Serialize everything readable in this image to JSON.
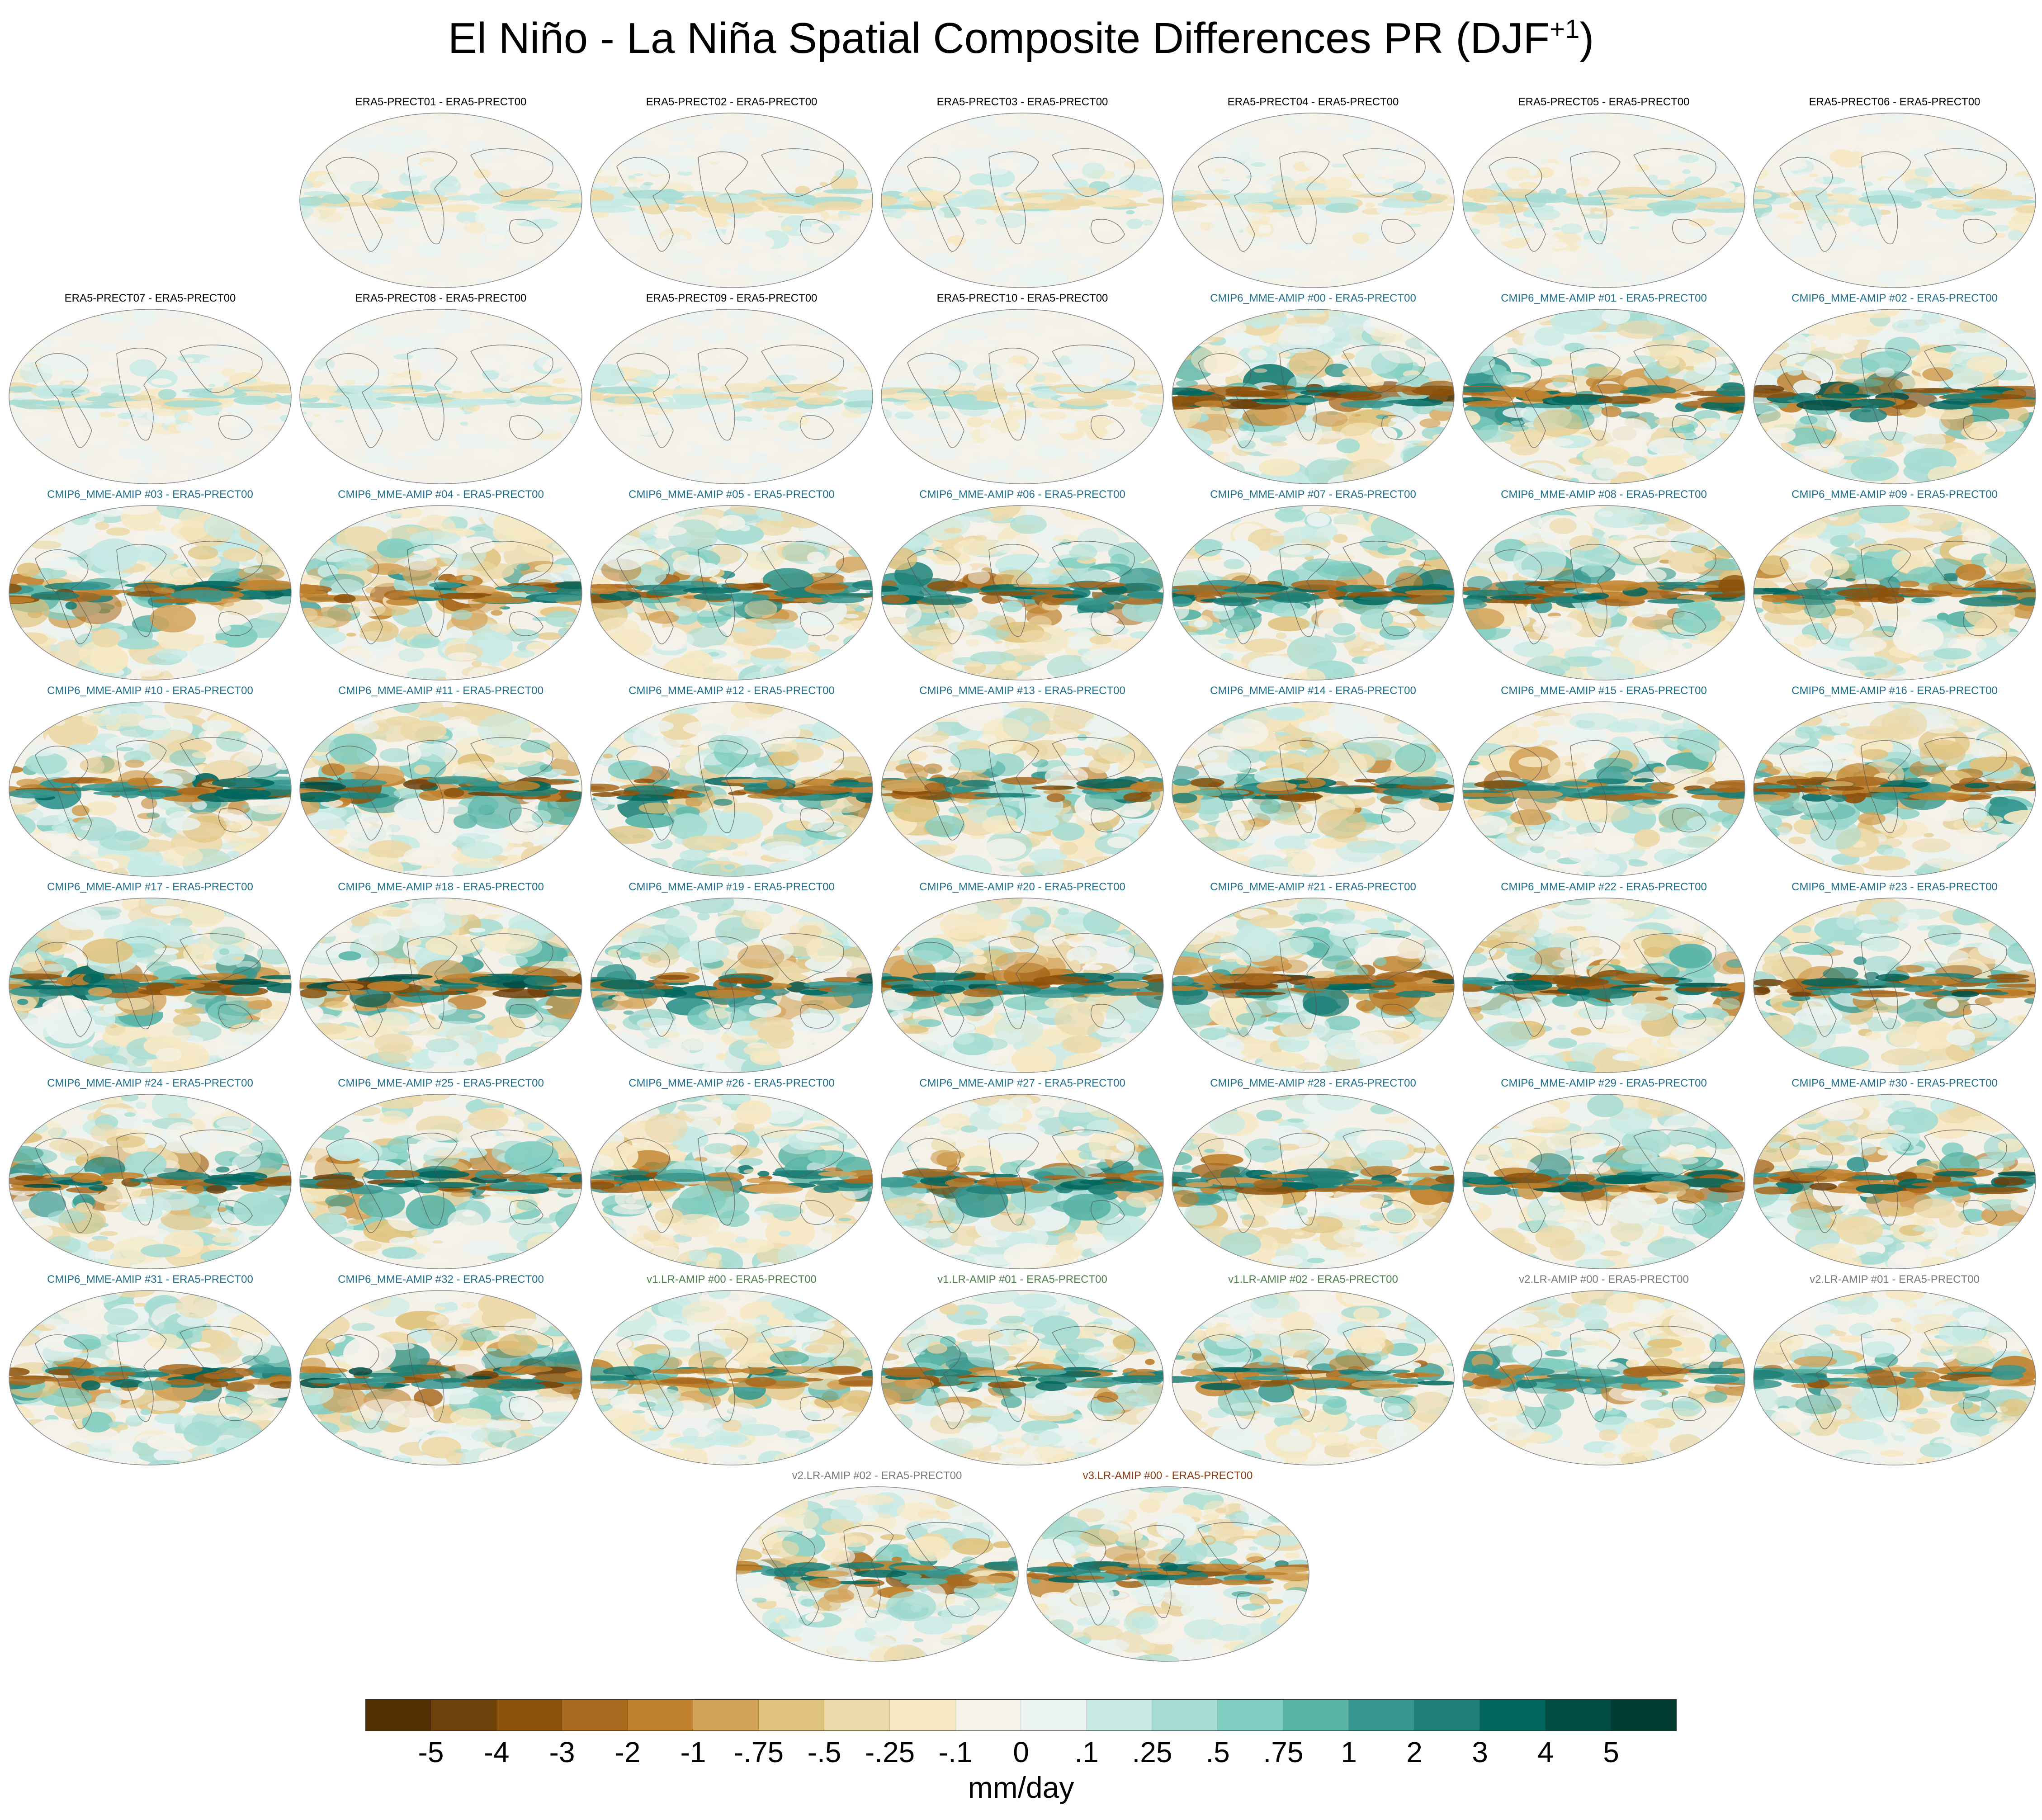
{
  "title": {
    "main": "El Niño - La Niña Spatial Composite Differences PR (DJF",
    "superscript": "+1",
    "suffix": ")"
  },
  "chart_data": {
    "type": "heatmap",
    "description_note": "Grid of global map panels (Mollweide projection), each showing precipitation composite difference relative to ERA5-PRECT00",
    "rows": [
      {
        "start_col": 1,
        "panels": [
          {
            "label": "ERA5-PRECT01 - ERA5-PRECT00",
            "group": "era5",
            "intensity": 0.25
          },
          {
            "label": "ERA5-PRECT02 - ERA5-PRECT00",
            "group": "era5",
            "intensity": 0.28
          },
          {
            "label": "ERA5-PRECT03 - ERA5-PRECT00",
            "group": "era5",
            "intensity": 0.27
          },
          {
            "label": "ERA5-PRECT04 - ERA5-PRECT00",
            "group": "era5",
            "intensity": 0.26
          },
          {
            "label": "ERA5-PRECT05 - ERA5-PRECT00",
            "group": "era5",
            "intensity": 0.3
          },
          {
            "label": "ERA5-PRECT06 - ERA5-PRECT00",
            "group": "era5",
            "intensity": 0.29
          }
        ]
      },
      {
        "start_col": 0,
        "panels": [
          {
            "label": "ERA5-PRECT07 - ERA5-PRECT00",
            "group": "era5",
            "intensity": 0.27
          },
          {
            "label": "ERA5-PRECT08 - ERA5-PRECT00",
            "group": "era5",
            "intensity": 0.26
          },
          {
            "label": "ERA5-PRECT09 - ERA5-PRECT00",
            "group": "era5",
            "intensity": 0.25
          },
          {
            "label": "ERA5-PRECT10 - ERA5-PRECT00",
            "group": "era5",
            "intensity": 0.27
          },
          {
            "label": "CMIP6_MME-AMIP  #00 - ERA5-PRECT00",
            "group": "cmip6",
            "intensity": 0.9
          },
          {
            "label": "CMIP6_MME-AMIP  #01 - ERA5-PRECT00",
            "group": "cmip6",
            "intensity": 0.85
          },
          {
            "label": "CMIP6_MME-AMIP  #02 - ERA5-PRECT00",
            "group": "cmip6",
            "intensity": 0.88
          }
        ]
      },
      {
        "start_col": 0,
        "panels": [
          {
            "label": "CMIP6_MME-AMIP  #03 - ERA5-PRECT00",
            "group": "cmip6",
            "intensity": 0.85
          },
          {
            "label": "CMIP6_MME-AMIP  #04 - ERA5-PRECT00",
            "group": "cmip6",
            "intensity": 0.82
          },
          {
            "label": "CMIP6_MME-AMIP  #05 - ERA5-PRECT00",
            "group": "cmip6",
            "intensity": 0.84
          },
          {
            "label": "CMIP6_MME-AMIP  #06 - ERA5-PRECT00",
            "group": "cmip6",
            "intensity": 0.86
          },
          {
            "label": "CMIP6_MME-AMIP  #07 - ERA5-PRECT00",
            "group": "cmip6",
            "intensity": 0.83
          },
          {
            "label": "CMIP6_MME-AMIP  #08 - ERA5-PRECT00",
            "group": "cmip6",
            "intensity": 0.85
          },
          {
            "label": "CMIP6_MME-AMIP  #09 - ERA5-PRECT00",
            "group": "cmip6",
            "intensity": 0.84
          }
        ]
      },
      {
        "start_col": 0,
        "panels": [
          {
            "label": "CMIP6_MME-AMIP  #10 - ERA5-PRECT00",
            "group": "cmip6",
            "intensity": 0.82
          },
          {
            "label": "CMIP6_MME-AMIP  #11 - ERA5-PRECT00",
            "group": "cmip6",
            "intensity": 0.88
          },
          {
            "label": "CMIP6_MME-AMIP  #12 - ERA5-PRECT00",
            "group": "cmip6",
            "intensity": 0.83
          },
          {
            "label": "CMIP6_MME-AMIP  #13 - ERA5-PRECT00",
            "group": "cmip6",
            "intensity": 0.8
          },
          {
            "label": "CMIP6_MME-AMIP  #14 - ERA5-PRECT00",
            "group": "cmip6",
            "intensity": 0.84
          },
          {
            "label": "CMIP6_MME-AMIP  #15 - ERA5-PRECT00",
            "group": "cmip6",
            "intensity": 0.81
          },
          {
            "label": "CMIP6_MME-AMIP  #16 - ERA5-PRECT00",
            "group": "cmip6",
            "intensity": 0.83
          }
        ]
      },
      {
        "start_col": 0,
        "panels": [
          {
            "label": "CMIP6_MME-AMIP  #17 - ERA5-PRECT00",
            "group": "cmip6",
            "intensity": 0.86
          },
          {
            "label": "CMIP6_MME-AMIP  #18 - ERA5-PRECT00",
            "group": "cmip6",
            "intensity": 0.9
          },
          {
            "label": "CMIP6_MME-AMIP  #19 - ERA5-PRECT00",
            "group": "cmip6",
            "intensity": 0.85
          },
          {
            "label": "CMIP6_MME-AMIP  #20 - ERA5-PRECT00",
            "group": "cmip6",
            "intensity": 0.86
          },
          {
            "label": "CMIP6_MME-AMIP  #21 - ERA5-PRECT00",
            "group": "cmip6",
            "intensity": 0.92
          },
          {
            "label": "CMIP6_MME-AMIP  #22 - ERA5-PRECT00",
            "group": "cmip6",
            "intensity": 0.87
          },
          {
            "label": "CMIP6_MME-AMIP  #23 - ERA5-PRECT00",
            "group": "cmip6",
            "intensity": 0.9
          }
        ]
      },
      {
        "start_col": 0,
        "panels": [
          {
            "label": "CMIP6_MME-AMIP  #24 - ERA5-PRECT00",
            "group": "cmip6",
            "intensity": 0.86
          },
          {
            "label": "CMIP6_MME-AMIP  #25 - ERA5-PRECT00",
            "group": "cmip6",
            "intensity": 0.88
          },
          {
            "label": "CMIP6_MME-AMIP  #26 - ERA5-PRECT00",
            "group": "cmip6",
            "intensity": 0.8
          },
          {
            "label": "CMIP6_MME-AMIP  #27 - ERA5-PRECT00",
            "group": "cmip6",
            "intensity": 0.84
          },
          {
            "label": "CMIP6_MME-AMIP  #28 - ERA5-PRECT00",
            "group": "cmip6",
            "intensity": 0.82
          },
          {
            "label": "CMIP6_MME-AMIP  #29 - ERA5-PRECT00",
            "group": "cmip6",
            "intensity": 0.85
          },
          {
            "label": "CMIP6_MME-AMIP  #30 - ERA5-PRECT00",
            "group": "cmip6",
            "intensity": 0.87
          }
        ]
      },
      {
        "start_col": 0,
        "panels": [
          {
            "label": "CMIP6_MME-AMIP  #31 - ERA5-PRECT00",
            "group": "cmip6",
            "intensity": 0.84
          },
          {
            "label": "CMIP6_MME-AMIP  #32 - ERA5-PRECT00",
            "group": "cmip6",
            "intensity": 0.9
          },
          {
            "label": "v1.LR-AMIP  #00 - ERA5-PRECT00",
            "group": "v1",
            "intensity": 0.75
          },
          {
            "label": "v1.LR-AMIP  #01 - ERA5-PRECT00",
            "group": "v1",
            "intensity": 0.76
          },
          {
            "label": "v1.LR-AMIP  #02 - ERA5-PRECT00",
            "group": "v1",
            "intensity": 0.78
          },
          {
            "label": "v2.LR-AMIP  #00 - ERA5-PRECT00",
            "group": "v2",
            "intensity": 0.74
          },
          {
            "label": "v2.LR-AMIP  #01 - ERA5-PRECT00",
            "group": "v2",
            "intensity": 0.75
          }
        ]
      },
      {
        "start_col": 2.5,
        "panels": [
          {
            "label": "v2.LR-AMIP  #02 - ERA5-PRECT00",
            "group": "v2",
            "intensity": 0.76
          },
          {
            "label": "v3.LR-AMIP  #00 - ERA5-PRECT00",
            "group": "v3",
            "intensity": 0.78
          }
        ]
      }
    ],
    "group_colors": {
      "era5": "#000000",
      "cmip6": "#1f6e8c",
      "v1": "#4f7f4f",
      "v2": "#7a7a7a",
      "v3": "#8a3b12"
    },
    "colorbar": {
      "label": "mm/day",
      "colors": [
        "#543005",
        "#6e400a",
        "#8c510a",
        "#a8691e",
        "#bf812d",
        "#d3a35b",
        "#dfc27d",
        "#ecd9a9",
        "#f6e8c3",
        "#f5f2ea",
        "#eaf3f1",
        "#c7eae5",
        "#a6dcd3",
        "#80cdc1",
        "#5ab4a6",
        "#35978f",
        "#1d7f76",
        "#01665e",
        "#014c43",
        "#003c30"
      ],
      "tick_labels": [
        "-5",
        "-4",
        "-3",
        "-2",
        "-1",
        "-.75",
        "-.5",
        "-.25",
        "-.1",
        "0",
        ".1",
        ".25",
        ".5",
        ".75",
        "1",
        "2",
        "3",
        "4",
        "5"
      ]
    }
  }
}
